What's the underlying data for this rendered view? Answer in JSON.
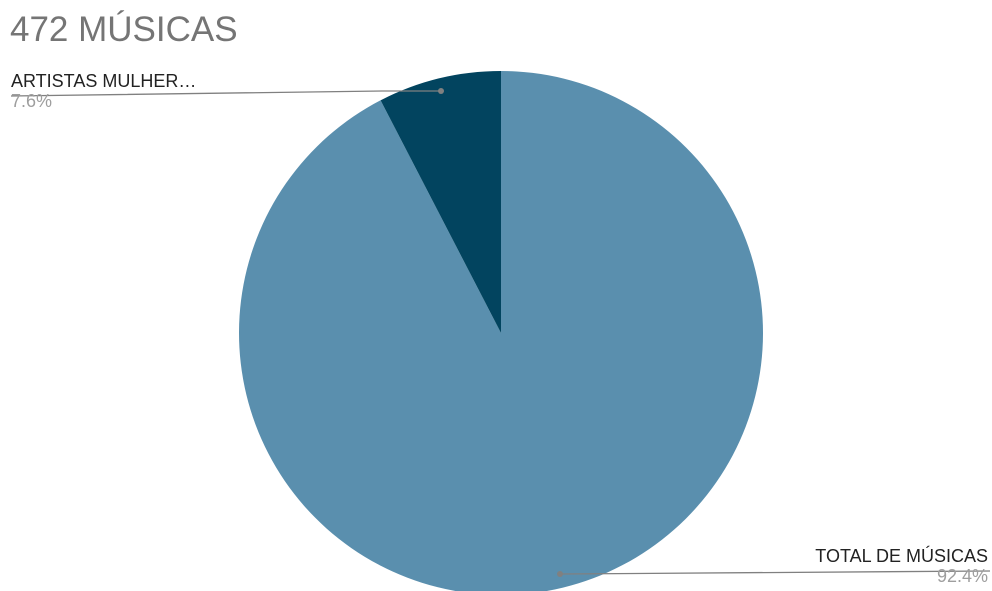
{
  "chart_data": {
    "type": "pie",
    "title": "472 MÚSICAS",
    "slices": [
      {
        "label": "TOTAL DE MÚSICAS",
        "percent_label": "92.4%",
        "value": 92.4,
        "color": "#5a8fae"
      },
      {
        "label": "ARTISTAS MULHER…",
        "percent_label": "7.6%",
        "value": 7.6,
        "color": "#02445f"
      }
    ],
    "start_angle_deg": 0,
    "direction": "clockwise",
    "leader_line_color": "#808080",
    "legend": "none"
  }
}
